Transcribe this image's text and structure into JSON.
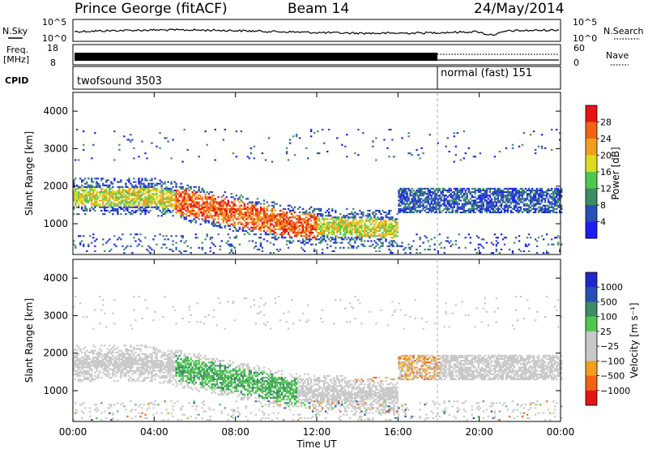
{
  "header": {
    "station": "Prince George (fitACF)",
    "beam": "Beam 14",
    "date": "24/May/2014"
  },
  "noise_panel": {
    "left_label": "N.Sky",
    "right_label": "N.Search",
    "tick_top": "10^5",
    "tick_bottom": "10^0",
    "right_tick_top": "10^5",
    "right_tick_bottom": "10^0"
  },
  "freq_panel": {
    "left_label_1": "Freq.",
    "left_label_2": "[MHz]",
    "tick_top": "18",
    "tick_bottom": "8",
    "right_label": "Nave",
    "right_tick_top": "60",
    "right_tick_bottom": "0"
  },
  "cpid_panel": {
    "label": "CPID",
    "modes": [
      {
        "name": "twofsound 3503",
        "start_hour": 0,
        "end_hour": 18
      },
      {
        "name": "normal (fast) 151",
        "start_hour": 18,
        "end_hour": 24
      }
    ]
  },
  "chart_data": [
    {
      "type": "heatmap",
      "name": "power",
      "ylabel": "Slant Range [km]",
      "ylim": [
        180,
        4500
      ],
      "yticks": [
        "1000",
        "2000",
        "3000",
        "4000"
      ],
      "ytick_values": [
        1000,
        2000,
        3000,
        4000
      ],
      "colorbar_label": "Power [dB]",
      "colorbar_ticks": [
        "4",
        "8",
        "12",
        "16",
        "20",
        "24",
        "28"
      ],
      "colorbar_colors": [
        "#1e1ef0",
        "#2850b4",
        "#3c8c64",
        "#50c850",
        "#dcdc1e",
        "#f0a01e",
        "#f06414",
        "#e61414"
      ]
    },
    {
      "type": "heatmap",
      "name": "velocity",
      "ylabel": "Slant Range [km]",
      "ylim": [
        180,
        4500
      ],
      "yticks": [
        "1000",
        "2000",
        "3000",
        "4000"
      ],
      "ytick_values": [
        1000,
        2000,
        3000,
        4000
      ],
      "colorbar_label": "Velocity [m s⁻¹]",
      "colorbar_ticks": [
        "1000",
        "500",
        "100",
        "25",
        "−25",
        "−100",
        "−500",
        "−1000"
      ],
      "colorbar_colors": [
        "#1e28c8",
        "#2850b4",
        "#3c8c64",
        "#50c850",
        "#c8c8c8",
        "#c8c8c8",
        "#f0a01e",
        "#f06414",
        "#e61414"
      ]
    }
  ],
  "x_axis": {
    "label": "Time UT",
    "ticks": [
      "00:00",
      "04:00",
      "08:00",
      "12:00",
      "16:00",
      "20:00",
      "00:00"
    ],
    "xlim_hours": [
      0,
      24
    ]
  }
}
